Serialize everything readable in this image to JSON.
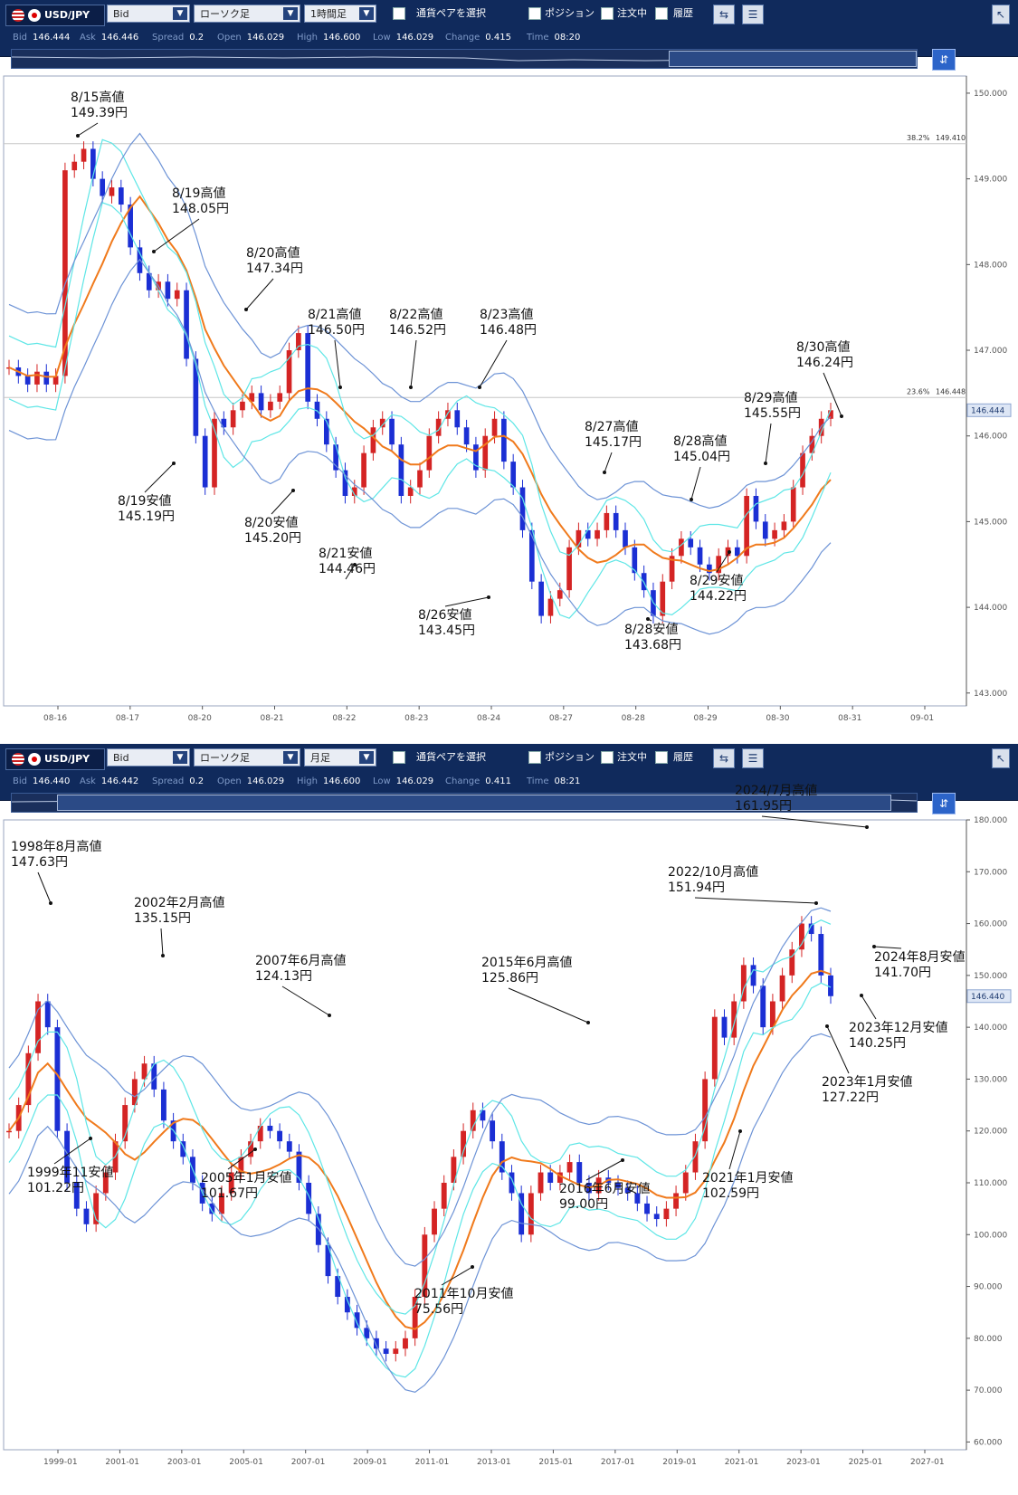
{
  "panels": [
    {
      "toolbar": {
        "pair": "USD/JPY",
        "price_type": "Bid",
        "chart_type": "ローソク足",
        "timeframe": "1時間足",
        "select_pair": "通貨ペアを選択",
        "position": "ポジション",
        "orders": "注文中",
        "history": "履歴"
      },
      "status": {
        "bid_label": "Bid",
        "bid": "146.444",
        "ask_label": "Ask",
        "ask": "146.446",
        "spread_label": "Spread",
        "spread": "0.2",
        "open_label": "Open",
        "open": "146.029",
        "high_label": "High",
        "high": "146.600",
        "low_label": "Low",
        "low": "146.029",
        "change_label": "Change",
        "change": "0.415",
        "time_label": "Time",
        "time": "08:20"
      },
      "price_tag": "146.444",
      "fib_lines": [
        {
          "label": "38.2%",
          "value": "149.410",
          "price": 149.41
        },
        {
          "label": "23.6%",
          "value": "146.448",
          "price": 146.448
        }
      ],
      "chart_data": {
        "type": "candlestick",
        "x_ticks": [
          "08-16",
          "08-17",
          "08-20",
          "08-21",
          "08-22",
          "08-23",
          "08-24",
          "08-27",
          "08-28",
          "08-29",
          "08-30",
          "08-31",
          "09-01"
        ],
        "y_ticks": [
          "143.000",
          "144.000",
          "145.000",
          "146.000",
          "147.000",
          "148.000",
          "149.000",
          "150.000"
        ],
        "ylim": [
          142.85,
          150.2
        ],
        "series_close": [
          146.8,
          146.7,
          146.6,
          146.75,
          146.6,
          146.7,
          149.1,
          149.2,
          149.35,
          149.0,
          148.8,
          148.9,
          148.7,
          148.2,
          147.9,
          147.7,
          147.8,
          147.6,
          147.7,
          146.9,
          146.0,
          145.4,
          146.2,
          146.1,
          146.3,
          146.4,
          146.5,
          146.3,
          146.4,
          146.5,
          147.0,
          147.2,
          146.4,
          146.2,
          145.9,
          145.6,
          145.3,
          145.4,
          145.8,
          146.1,
          146.2,
          145.9,
          145.3,
          145.4,
          145.6,
          146.0,
          146.2,
          146.3,
          146.1,
          145.9,
          145.6,
          146.0,
          146.2,
          145.7,
          145.4,
          144.9,
          144.3,
          143.9,
          144.1,
          144.2,
          144.7,
          144.9,
          144.8,
          144.9,
          145.1,
          144.9,
          144.7,
          144.4,
          144.2,
          143.9,
          144.3,
          144.6,
          144.8,
          144.7,
          144.5,
          144.4,
          144.6,
          144.7,
          144.6,
          145.3,
          145.0,
          144.8,
          144.9,
          145.0,
          145.4,
          145.8,
          146.0,
          146.2,
          146.3
        ],
        "annotations": [
          {
            "text": [
              "8/15高値",
              "149.39円"
            ]
          },
          {
            "text": [
              "8/19高値",
              "148.05円"
            ]
          },
          {
            "text": [
              "8/20高値",
              "147.34円"
            ]
          },
          {
            "text": [
              "8/21高値",
              "146.50円"
            ]
          },
          {
            "text": [
              "8/22高値",
              "146.52円"
            ]
          },
          {
            "text": [
              "8/23高値",
              "146.48円"
            ]
          },
          {
            "text": [
              "8/27高値",
              "145.17円"
            ]
          },
          {
            "text": [
              "8/28高値",
              "145.04円"
            ]
          },
          {
            "text": [
              "8/29高値",
              "145.55円"
            ]
          },
          {
            "text": [
              "8/30高値",
              "146.24円"
            ]
          },
          {
            "text": [
              "8/19安値",
              "145.19円"
            ]
          },
          {
            "text": [
              "8/20安値",
              "145.20円"
            ]
          },
          {
            "text": [
              "8/21安値",
              "144.46円"
            ]
          },
          {
            "text": [
              "8/26安値",
              "143.45円"
            ]
          },
          {
            "text": [
              "8/28安値",
              "143.68円"
            ]
          },
          {
            "text": [
              "8/29安値",
              "144.22円"
            ]
          }
        ]
      }
    },
    {
      "toolbar": {
        "pair": "USD/JPY",
        "price_type": "Bid",
        "chart_type": "ローソク足",
        "timeframe": "月足",
        "select_pair": "通貨ペアを選択",
        "position": "ポジション",
        "orders": "注文中",
        "history": "履歴"
      },
      "status": {
        "bid_label": "Bid",
        "bid": "146.440",
        "ask_label": "Ask",
        "ask": "146.442",
        "spread_label": "Spread",
        "spread": "0.2",
        "open_label": "Open",
        "open": "146.029",
        "high_label": "High",
        "high": "146.600",
        "low_label": "Low",
        "low": "146.029",
        "change_label": "Change",
        "change": "0.411",
        "time_label": "Time",
        "time": "08:21"
      },
      "price_tag": "146.440",
      "chart_data": {
        "type": "candlestick",
        "x_ticks": [
          "1999-01",
          "2001-01",
          "2003-01",
          "2005-01",
          "2007-01",
          "2009-01",
          "2011-01",
          "2013-01",
          "2015-01",
          "2017-01",
          "2019-01",
          "2021-01",
          "2023-01",
          "2025-01",
          "2027-01"
        ],
        "y_ticks": [
          "60.000",
          "70.000",
          "80.000",
          "90.000",
          "100.000",
          "110.000",
          "120.000",
          "130.000",
          "140.000",
          "150.000",
          "160.000",
          "170.000",
          "180.000"
        ],
        "ylim": [
          58.5,
          180
        ],
        "series_close": [
          120,
          125,
          135,
          145,
          140,
          120,
          110,
          105,
          102,
          108,
          112,
          118,
          125,
          130,
          133,
          128,
          122,
          118,
          115,
          110,
          106,
          104,
          108,
          112,
          115,
          118,
          121,
          120,
          118,
          116,
          110,
          104,
          98,
          92,
          88,
          85,
          82,
          80,
          78,
          77,
          78,
          80,
          88,
          100,
          105,
          110,
          115,
          120,
          124,
          122,
          118,
          112,
          108,
          100,
          108,
          112,
          110,
          112,
          114,
          110,
          108,
          111,
          110,
          109,
          108,
          106,
          104,
          103,
          105,
          108,
          112,
          118,
          130,
          142,
          138,
          145,
          152,
          148,
          140,
          145,
          150,
          155,
          160,
          158,
          150,
          146
        ],
        "annotations": [
          {
            "text": [
              "1998年8月高値",
              "147.63円"
            ]
          },
          {
            "text": [
              "2002年2月高値",
              "135.15円"
            ]
          },
          {
            "text": [
              "2007年6月高値",
              "124.13円"
            ]
          },
          {
            "text": [
              "2015年6月高値",
              "125.86円"
            ]
          },
          {
            "text": [
              "2022/10月高値",
              "151.94円"
            ]
          },
          {
            "text": [
              "2024/7月高値",
              "161.95円"
            ]
          },
          {
            "text": [
              "1999年11安値",
              "101.22円"
            ]
          },
          {
            "text": [
              "2005年1月安値",
              "101.67円"
            ]
          },
          {
            "text": [
              "2011年10月安値",
              "75.56円"
            ]
          },
          {
            "text": [
              "2016年6月安値",
              "99.00円"
            ]
          },
          {
            "text": [
              "2021年1月安値",
              "102.59円"
            ]
          },
          {
            "text": [
              "2023年1月安値",
              "127.22円"
            ]
          },
          {
            "text": [
              "2023年12月安値",
              "140.25円"
            ]
          },
          {
            "text": [
              "2024年8月安値",
              "141.70円"
            ]
          }
        ]
      }
    }
  ]
}
